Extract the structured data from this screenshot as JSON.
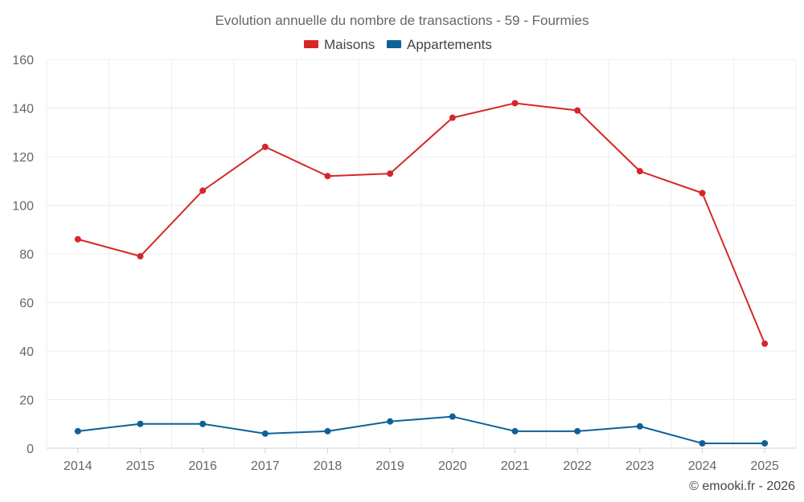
{
  "chart_data": {
    "type": "line",
    "title": "Evolution annuelle du nombre de transactions - 59 - Fourmies",
    "categories": [
      "2014",
      "2015",
      "2016",
      "2017",
      "2018",
      "2019",
      "2020",
      "2021",
      "2022",
      "2023",
      "2024",
      "2025"
    ],
    "series": [
      {
        "name": "Maisons",
        "color": "#d62728",
        "values": [
          86,
          79,
          106,
          124,
          112,
          113,
          136,
          142,
          139,
          114,
          105,
          43
        ]
      },
      {
        "name": "Appartements",
        "color": "#0e6198",
        "values": [
          7,
          10,
          10,
          6,
          7,
          11,
          13,
          7,
          7,
          9,
          2,
          2
        ]
      }
    ],
    "ylim": [
      0,
      160
    ],
    "yticks": [
      "0",
      "20",
      "40",
      "60",
      "80",
      "100",
      "120",
      "140",
      "160"
    ],
    "grid": true,
    "legend": "top-center"
  },
  "credit": "© emooki.fr - 2026"
}
